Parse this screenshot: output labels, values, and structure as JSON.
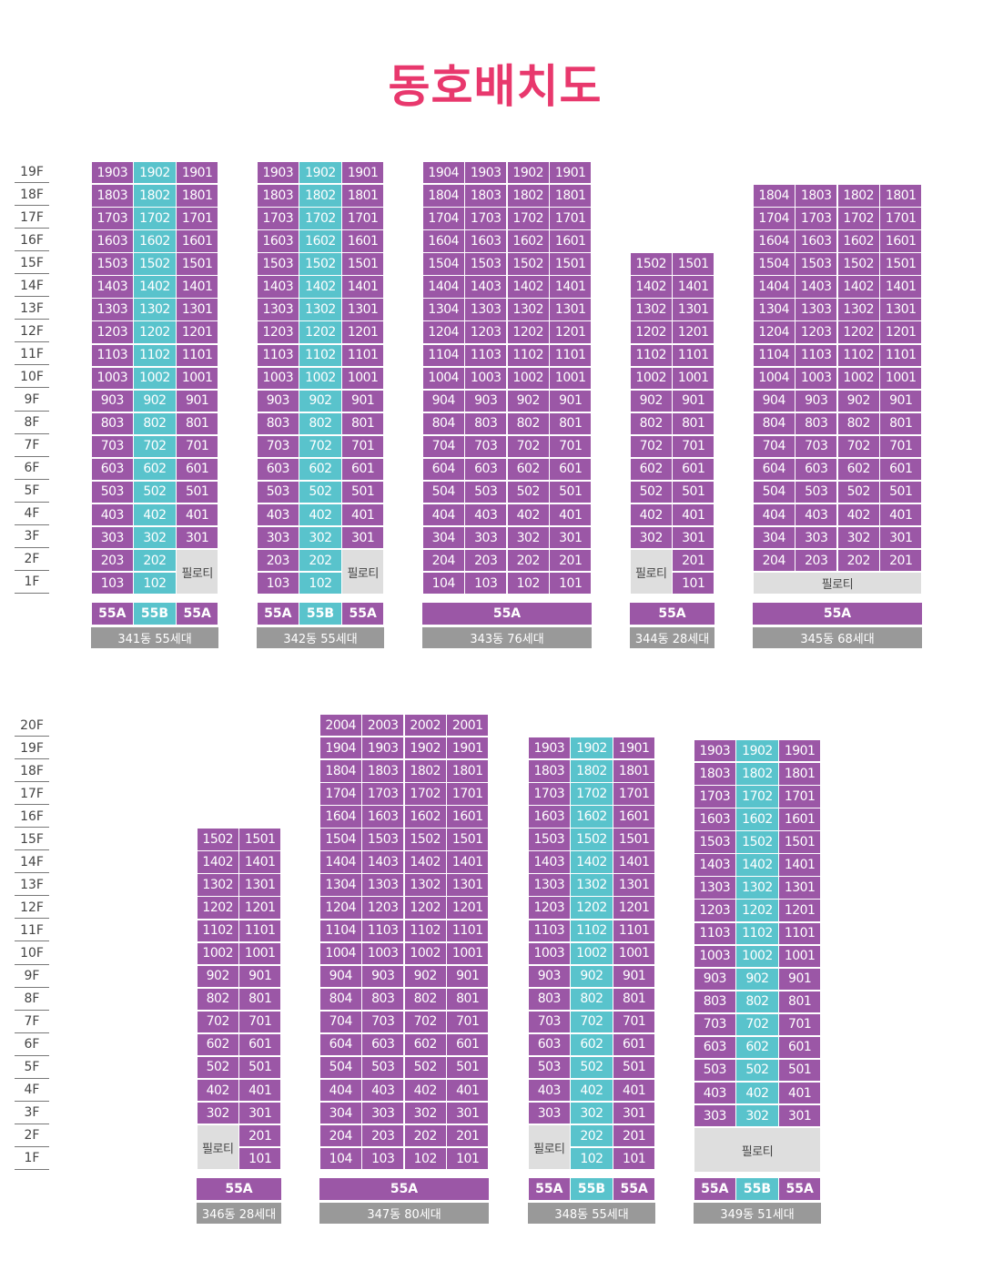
{
  "title": "동호배치도",
  "piloti_label": "필로티",
  "colors": {
    "type_55A": "#9b57a6",
    "type_55B": "#59c3cc",
    "piloti": "#dedede",
    "name_bar": "#999999",
    "title": "#e8386d"
  },
  "floor_labels_top": [
    "19F",
    "18F",
    "17F",
    "16F",
    "15F",
    "14F",
    "13F",
    "12F",
    "11F",
    "10F",
    "9F",
    "8F",
    "7F",
    "6F",
    "5F",
    "4F",
    "3F",
    "2F",
    "1F"
  ],
  "floor_labels_bottom": [
    "20F",
    "19F",
    "18F",
    "17F",
    "16F",
    "15F",
    "14F",
    "13F",
    "12F",
    "11F",
    "10F",
    "9F",
    "8F",
    "7F",
    "6F",
    "5F",
    "4F",
    "3F",
    "2F",
    "1F"
  ],
  "buildings": [
    {
      "name": "341동 55세대",
      "type_labels": [
        "55A",
        "55B",
        "55A"
      ]
    },
    {
      "name": "342동 55세대",
      "type_labels": [
        "55A",
        "55B",
        "55A"
      ]
    },
    {
      "name": "343동 76세대",
      "type_labels": [
        "55A"
      ]
    },
    {
      "name": "344동 28세대",
      "type_labels": [
        "55A"
      ]
    },
    {
      "name": "345동 68세대",
      "type_labels": [
        "55A"
      ]
    },
    {
      "name": "346동 28세대",
      "type_labels": [
        "55A"
      ]
    },
    {
      "name": "347동 80세대",
      "type_labels": [
        "55A"
      ]
    },
    {
      "name": "348동 55세대",
      "type_labels": [
        "55A",
        "55B",
        "55A"
      ]
    },
    {
      "name": "349동 51세대",
      "type_labels": [
        "55A",
        "55B",
        "55A"
      ]
    }
  ]
}
